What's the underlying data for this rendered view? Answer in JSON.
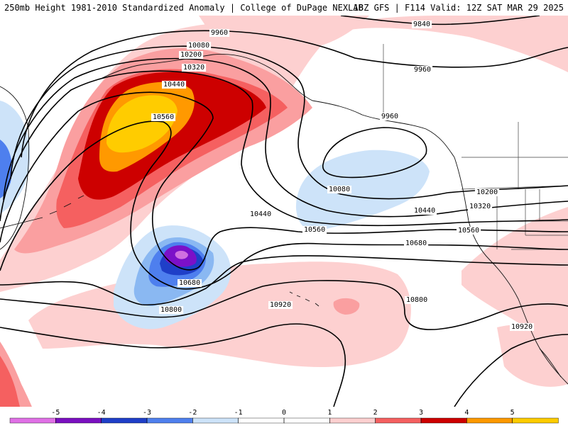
{
  "header": {
    "left": "250mb Height 1981-2010 Standardized Anomaly | College of DuPage NEXLAB",
    "right": "18Z GFS | F114 Valid: 12Z SAT MAR 29 2025"
  },
  "colors": {
    "pos1": "#fdd0d0",
    "pos2": "#fa9fa0",
    "pos3": "#f56060",
    "pos4": "#cd0000",
    "pos5": "#ff9900",
    "pos6": "#ffcc00",
    "neg1": "#cde3f9",
    "neg2": "#8ab8f2",
    "neg3": "#4e7fee",
    "neg4": "#1f3fc8",
    "neg5": "#7b10c8",
    "neg6": "#d070e0"
  },
  "contour_labels": [
    "9840",
    "9960",
    "9960",
    "9960",
    "10080",
    "10080",
    "10200",
    "10200",
    "10320",
    "10320",
    "10440",
    "10440",
    "10440",
    "10560",
    "10560",
    "10560",
    "10680",
    "10680",
    "10800",
    "10800",
    "10920",
    "10920"
  ],
  "legend": {
    "ticks": [
      "-5",
      "-4",
      "-3",
      "-2",
      "-1",
      "0",
      "1",
      "2",
      "3",
      "4",
      "5"
    ],
    "colors": [
      "#e070e6",
      "#7a10c0",
      "#1f3fc8",
      "#4f80ee",
      "#cde3f9",
      "#ffffff",
      "#ffffff",
      "#fdd0d0",
      "#f56060",
      "#cd0000",
      "#ff9900",
      "#ffcc00"
    ]
  }
}
